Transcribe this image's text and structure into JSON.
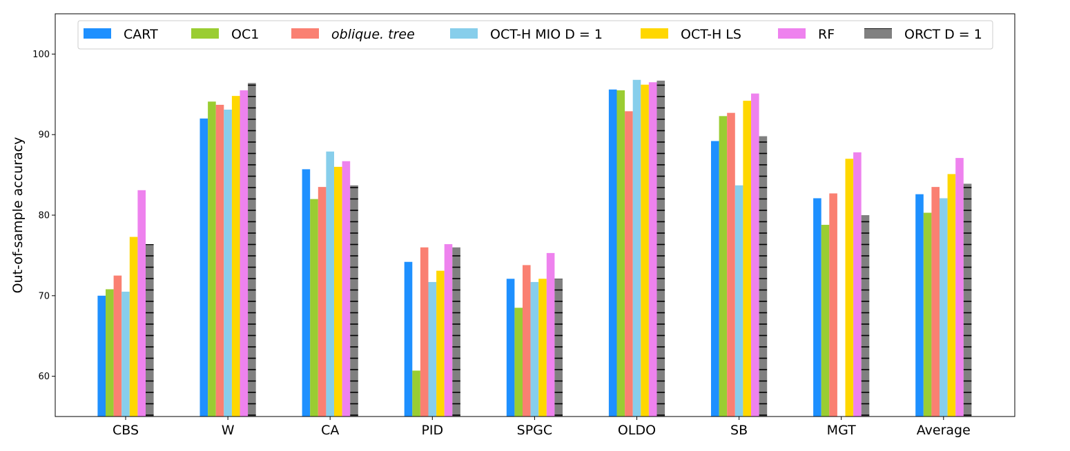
{
  "chart_data": {
    "type": "bar",
    "title": "",
    "xlabel": "",
    "ylabel": "Out-of-sample accuracy",
    "ylim": [
      55,
      105
    ],
    "yticks": [
      "60",
      "70",
      "80",
      "90",
      "100"
    ],
    "grid": false,
    "legend_position": "top",
    "categories": [
      "CBS",
      "W",
      "CA",
      "PID",
      "SPGC",
      "OLDO",
      "SB",
      "MGT",
      "Average"
    ],
    "series": [
      {
        "name": "CART",
        "italic": false,
        "color": "#1e90ff",
        "hatch": false,
        "values": [
          70.0,
          92.0,
          85.7,
          74.2,
          72.1,
          95.6,
          89.2,
          82.1,
          82.6
        ]
      },
      {
        "name": "OC1",
        "italic": false,
        "color": "#9acd32",
        "hatch": false,
        "values": [
          70.8,
          94.1,
          82.0,
          60.7,
          68.5,
          95.5,
          92.3,
          78.8,
          80.3
        ]
      },
      {
        "name": "oblique. tree",
        "italic": true,
        "color": "#fa8072",
        "hatch": false,
        "values": [
          72.5,
          93.7,
          83.5,
          76.0,
          73.8,
          92.9,
          92.7,
          82.7,
          83.5
        ]
      },
      {
        "name": "OCT-H MIO D = 1",
        "italic": false,
        "color": "#87ceeb",
        "hatch": false,
        "values": [
          70.5,
          93.1,
          87.9,
          71.7,
          71.7,
          96.8,
          83.7,
          null,
          82.1
        ]
      },
      {
        "name": "OCT-H LS",
        "italic": false,
        "color": "#ffd700",
        "hatch": false,
        "values": [
          77.3,
          94.8,
          86.0,
          73.1,
          72.1,
          96.2,
          94.2,
          87.0,
          85.1
        ]
      },
      {
        "name": "RF",
        "italic": false,
        "color": "#ee82ee",
        "hatch": false,
        "values": [
          83.1,
          95.5,
          86.7,
          76.4,
          75.3,
          96.5,
          95.1,
          87.8,
          87.1
        ]
      },
      {
        "name": "ORCT D = 1",
        "italic": false,
        "color": "#808080",
        "hatch": true,
        "values": [
          76.4,
          96.4,
          83.7,
          76.0,
          72.1,
          96.7,
          89.8,
          80.0,
          83.9
        ]
      }
    ]
  }
}
